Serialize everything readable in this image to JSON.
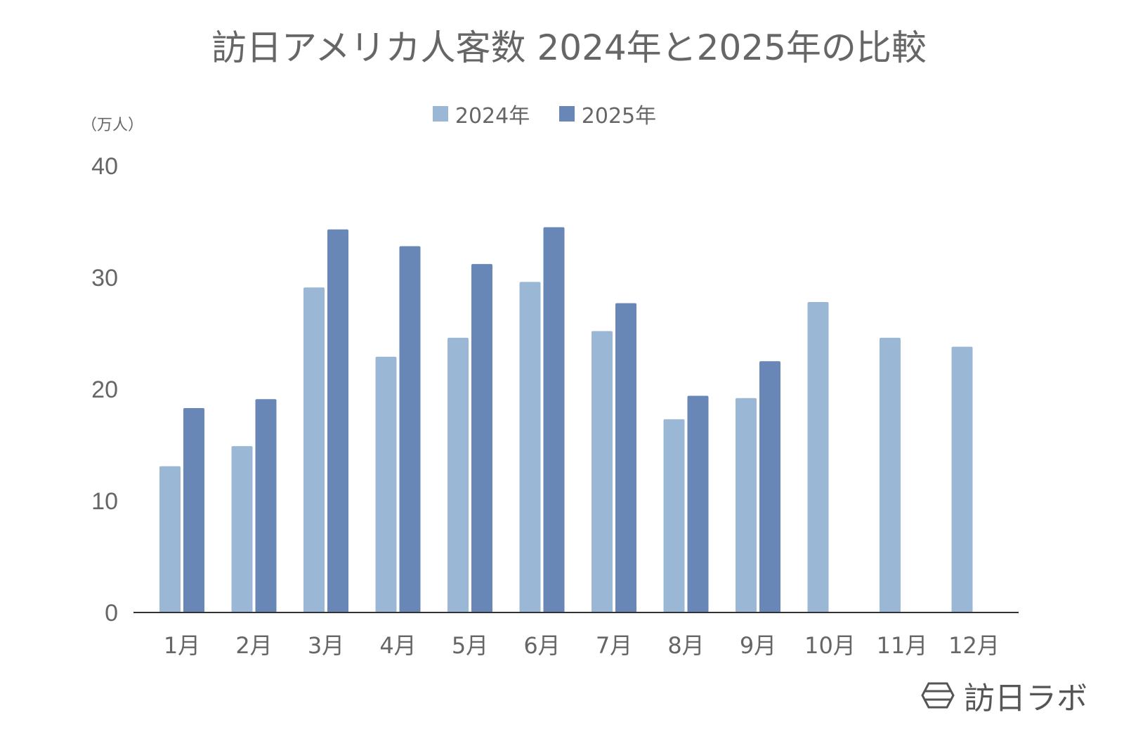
{
  "chart_data": {
    "type": "bar",
    "title": "訪日アメリカ人客数 2024年と2025年の比較",
    "ylabel": "（万人）",
    "ylim": [
      0,
      40
    ],
    "yticks": [
      0,
      10,
      20,
      30,
      40
    ],
    "grid": false,
    "legend_position": "top",
    "categories": [
      "1月",
      "2月",
      "3月",
      "4月",
      "5月",
      "6月",
      "7月",
      "8月",
      "9月",
      "10月",
      "11月",
      "12月"
    ],
    "series": [
      {
        "name": "2024年",
        "color": "#9bb7d6",
        "values": [
          13.1,
          14.9,
          29.1,
          22.9,
          24.6,
          29.6,
          25.2,
          17.3,
          19.2,
          27.8,
          24.6,
          23.8
        ]
      },
      {
        "name": "2025年",
        "color": "#6887b6",
        "values": [
          18.3,
          19.1,
          34.3,
          32.8,
          31.2,
          34.5,
          27.7,
          19.4,
          22.5,
          null,
          null,
          null
        ]
      }
    ]
  },
  "logo": {
    "text": "訪日ラボ"
  }
}
